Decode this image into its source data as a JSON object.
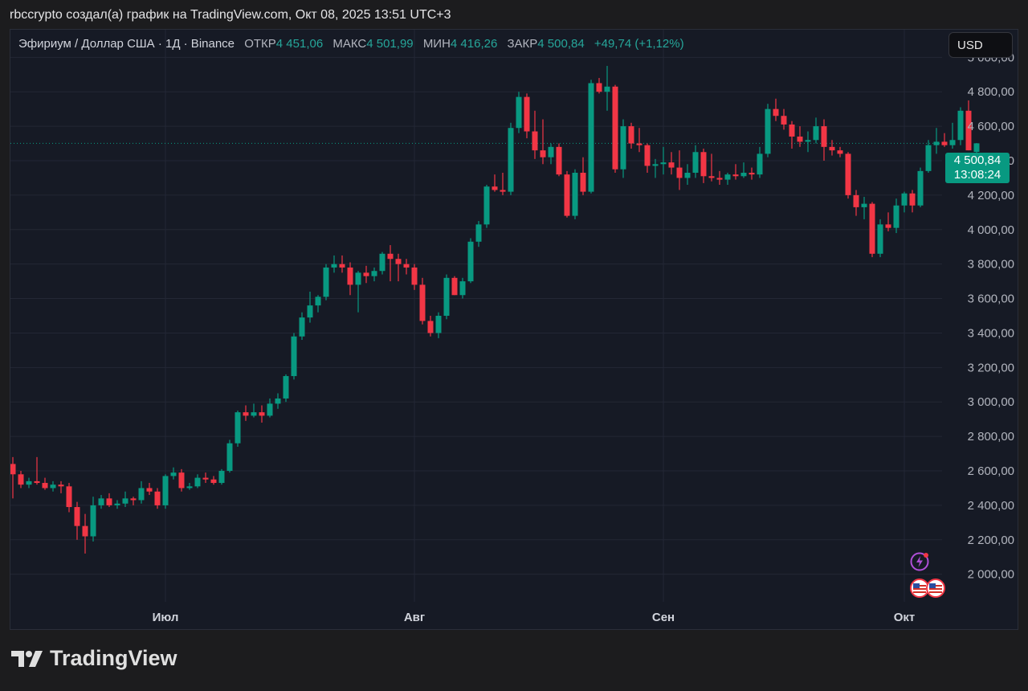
{
  "caption": "rbccrypto создал(а) график на TradingView.com, Окт 08, 2025 13:51 UTC+3",
  "legend": {
    "symbol": "Эфириум / Доллар США · 1Д · Binance",
    "open_label": "ОТКР",
    "open_value": "4 451,06",
    "high_label": "МАКС",
    "high_value": "4 501,99",
    "low_label": "МИН",
    "low_value": "4 416,26",
    "close_label": "ЗАКР",
    "close_value": "4 500,84",
    "change_value": "+49,74 (+1,12%)"
  },
  "currency_button": "USD",
  "last_price": {
    "value": "4 500,84",
    "countdown": "13:08:24"
  },
  "brand": "TradingView",
  "icons": {
    "bolt": "lightning-icon",
    "flag": "us-flag-icon"
  },
  "colors": {
    "up": "#089981",
    "down": "#f23645",
    "background": "#161a25",
    "grid": "#232735"
  },
  "chart_data": {
    "type": "candlestick",
    "y_tick_labels": [
      "2 000,00",
      "2 200,00",
      "2 400,00",
      "2 600,00",
      "2 800,00",
      "3 000,00",
      "3 200,00",
      "3 400,00",
      "3 600,00",
      "3 800,00",
      "4 000,00",
      "4 200,00",
      "4 400,00",
      "4 600,00",
      "4 800,00",
      "5 000,00"
    ],
    "y_ticks": [
      2000,
      2200,
      2400,
      2600,
      2800,
      3000,
      3200,
      3400,
      3600,
      3800,
      4000,
      4200,
      4400,
      4600,
      4800,
      5000
    ],
    "ylim": [
      1840,
      5160
    ],
    "x_tick_labels": [
      "Июл",
      "Авг",
      "Сен",
      "Окт"
    ],
    "x_tick_dates": [
      "2025-07-01",
      "2025-08-01",
      "2025-09-01",
      "2025-10-01"
    ],
    "first_date": "2025-06-12",
    "last_close": 4500.84,
    "candles": [
      [
        2640,
        2680,
        2440,
        2580
      ],
      [
        2580,
        2600,
        2500,
        2520
      ],
      [
        2520,
        2560,
        2500,
        2540
      ],
      [
        2540,
        2680,
        2520,
        2530
      ],
      [
        2530,
        2560,
        2490,
        2500
      ],
      [
        2500,
        2540,
        2480,
        2520
      ],
      [
        2520,
        2540,
        2470,
        2510
      ],
      [
        2510,
        2530,
        2360,
        2390
      ],
      [
        2390,
        2420,
        2200,
        2280
      ],
      [
        2280,
        2350,
        2120,
        2220
      ],
      [
        2220,
        2450,
        2190,
        2400
      ],
      [
        2400,
        2460,
        2380,
        2440
      ],
      [
        2440,
        2470,
        2390,
        2400
      ],
      [
        2400,
        2430,
        2380,
        2410
      ],
      [
        2410,
        2480,
        2390,
        2440
      ],
      [
        2440,
        2450,
        2400,
        2430
      ],
      [
        2430,
        2540,
        2410,
        2500
      ],
      [
        2500,
        2530,
        2460,
        2480
      ],
      [
        2480,
        2500,
        2380,
        2400
      ],
      [
        2400,
        2580,
        2380,
        2570
      ],
      [
        2570,
        2620,
        2550,
        2590
      ],
      [
        2590,
        2610,
        2480,
        2500
      ],
      [
        2500,
        2530,
        2490,
        2510
      ],
      [
        2510,
        2580,
        2500,
        2560
      ],
      [
        2560,
        2590,
        2530,
        2550
      ],
      [
        2550,
        2570,
        2520,
        2530
      ],
      [
        2530,
        2610,
        2520,
        2600
      ],
      [
        2600,
        2780,
        2590,
        2760
      ],
      [
        2760,
        2950,
        2740,
        2940
      ],
      [
        2940,
        2980,
        2890,
        2920
      ],
      [
        2920,
        2990,
        2910,
        2940
      ],
      [
        2940,
        2980,
        2880,
        2920
      ],
      [
        2920,
        3020,
        2910,
        2990
      ],
      [
        2990,
        3050,
        2960,
        3020
      ],
      [
        3020,
        3160,
        3000,
        3150
      ],
      [
        3150,
        3400,
        3130,
        3380
      ],
      [
        3380,
        3520,
        3360,
        3490
      ],
      [
        3490,
        3640,
        3460,
        3560
      ],
      [
        3560,
        3620,
        3520,
        3610
      ],
      [
        3610,
        3800,
        3590,
        3780
      ],
      [
        3780,
        3850,
        3750,
        3800
      ],
      [
        3800,
        3850,
        3750,
        3780
      ],
      [
        3780,
        3810,
        3620,
        3680
      ],
      [
        3680,
        3760,
        3520,
        3750
      ],
      [
        3750,
        3790,
        3690,
        3730
      ],
      [
        3730,
        3780,
        3700,
        3760
      ],
      [
        3760,
        3870,
        3740,
        3860
      ],
      [
        3860,
        3910,
        3700,
        3830
      ],
      [
        3830,
        3860,
        3700,
        3800
      ],
      [
        3800,
        3830,
        3740,
        3780
      ],
      [
        3780,
        3800,
        3650,
        3680
      ],
      [
        3680,
        3720,
        3450,
        3470
      ],
      [
        3470,
        3500,
        3380,
        3400
      ],
      [
        3400,
        3520,
        3370,
        3500
      ],
      [
        3500,
        3740,
        3480,
        3720
      ],
      [
        3720,
        3730,
        3620,
        3620
      ],
      [
        3620,
        3720,
        3600,
        3700
      ],
      [
        3700,
        3950,
        3690,
        3930
      ],
      [
        3930,
        4050,
        3900,
        4030
      ],
      [
        4030,
        4260,
        4010,
        4250
      ],
      [
        4250,
        4320,
        4220,
        4230
      ],
      [
        4230,
        4330,
        4200,
        4220
      ],
      [
        4220,
        4620,
        4200,
        4590
      ],
      [
        4590,
        4800,
        4560,
        4770
      ],
      [
        4770,
        4790,
        4530,
        4570
      ],
      [
        4570,
        4690,
        4410,
        4460
      ],
      [
        4460,
        4640,
        4380,
        4420
      ],
      [
        4420,
        4500,
        4380,
        4480
      ],
      [
        4480,
        4500,
        4310,
        4320
      ],
      [
        4320,
        4340,
        4070,
        4080
      ],
      [
        4080,
        4350,
        4060,
        4330
      ],
      [
        4330,
        4420,
        4200,
        4220
      ],
      [
        4220,
        4870,
        4210,
        4850
      ],
      [
        4850,
        4880,
        4790,
        4800
      ],
      [
        4800,
        4950,
        4690,
        4830
      ],
      [
        4830,
        4840,
        4330,
        4350
      ],
      [
        4350,
        4640,
        4300,
        4600
      ],
      [
        4600,
        4620,
        4470,
        4500
      ],
      [
        4500,
        4590,
        4450,
        4490
      ],
      [
        4490,
        4500,
        4330,
        4370
      ],
      [
        4370,
        4410,
        4300,
        4380
      ],
      [
        4380,
        4480,
        4320,
        4390
      ],
      [
        4390,
        4450,
        4320,
        4360
      ],
      [
        4360,
        4460,
        4230,
        4300
      ],
      [
        4300,
        4380,
        4260,
        4330
      ],
      [
        4330,
        4490,
        4300,
        4450
      ],
      [
        4450,
        4470,
        4270,
        4310
      ],
      [
        4310,
        4440,
        4280,
        4300
      ],
      [
        4300,
        4340,
        4260,
        4290
      ],
      [
        4290,
        4330,
        4260,
        4320
      ],
      [
        4320,
        4380,
        4290,
        4310
      ],
      [
        4310,
        4390,
        4300,
        4330
      ],
      [
        4330,
        4360,
        4290,
        4320
      ],
      [
        4320,
        4480,
        4300,
        4440
      ],
      [
        4440,
        4730,
        4420,
        4700
      ],
      [
        4700,
        4760,
        4630,
        4660
      ],
      [
        4660,
        4700,
        4580,
        4610
      ],
      [
        4610,
        4630,
        4470,
        4540
      ],
      [
        4540,
        4600,
        4480,
        4510
      ],
      [
        4510,
        4570,
        4450,
        4520
      ],
      [
        4520,
        4650,
        4500,
        4600
      ],
      [
        4600,
        4640,
        4400,
        4480
      ],
      [
        4480,
        4520,
        4430,
        4460
      ],
      [
        4460,
        4480,
        4420,
        4440
      ],
      [
        4440,
        4450,
        4180,
        4200
      ],
      [
        4200,
        4230,
        4080,
        4130
      ],
      [
        4130,
        4190,
        4060,
        4150
      ],
      [
        4150,
        4160,
        3840,
        3860
      ],
      [
        3860,
        4060,
        3840,
        4030
      ],
      [
        4030,
        4100,
        3990,
        4010
      ],
      [
        4010,
        4180,
        3980,
        4140
      ],
      [
        4140,
        4220,
        4100,
        4210
      ],
      [
        4210,
        4230,
        4100,
        4140
      ],
      [
        4140,
        4360,
        4130,
        4340
      ],
      [
        4340,
        4520,
        4330,
        4490
      ],
      [
        4490,
        4590,
        4440,
        4510
      ],
      [
        4510,
        4560,
        4480,
        4490
      ],
      [
        4490,
        4620,
        4470,
        4520
      ],
      [
        4520,
        4710,
        4490,
        4690
      ],
      [
        4690,
        4750,
        4460,
        4460
      ],
      [
        4451.06,
        4501.99,
        4416.26,
        4500.84
      ]
    ]
  }
}
